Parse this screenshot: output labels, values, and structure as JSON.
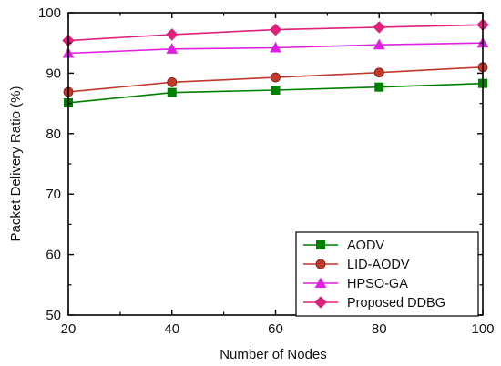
{
  "chart_data": {
    "type": "line",
    "title": "",
    "xlabel": "Number of Nodes",
    "ylabel": "Packet Delivery Ratio (%)",
    "x": [
      20,
      40,
      60,
      80,
      100
    ],
    "x_ticks": [
      "20",
      "40",
      "60",
      "80",
      "100"
    ],
    "xlim": [
      20,
      100
    ],
    "y_ticks": [
      "50",
      "60",
      "70",
      "80",
      "90",
      "100"
    ],
    "ylim": [
      50,
      100
    ],
    "grid": false,
    "legend_position": "bottom-right",
    "series": [
      {
        "name": "AODV",
        "values": [
          85.1,
          86.8,
          87.2,
          87.7,
          88.3
        ],
        "color": "#008000",
        "marker": "square"
      },
      {
        "name": "LID-AODV",
        "values": [
          86.9,
          88.5,
          89.3,
          90.1,
          91.0
        ],
        "color": "#c0392b",
        "marker": "circle"
      },
      {
        "name": "HPSO-GA",
        "values": [
          93.3,
          94.0,
          94.2,
          94.7,
          95.0
        ],
        "color": "#e020e0",
        "marker": "triangle"
      },
      {
        "name": "Proposed DDBG",
        "values": [
          95.4,
          96.4,
          97.2,
          97.6,
          98.0
        ],
        "color": "#e0207a",
        "marker": "diamond"
      }
    ]
  }
}
